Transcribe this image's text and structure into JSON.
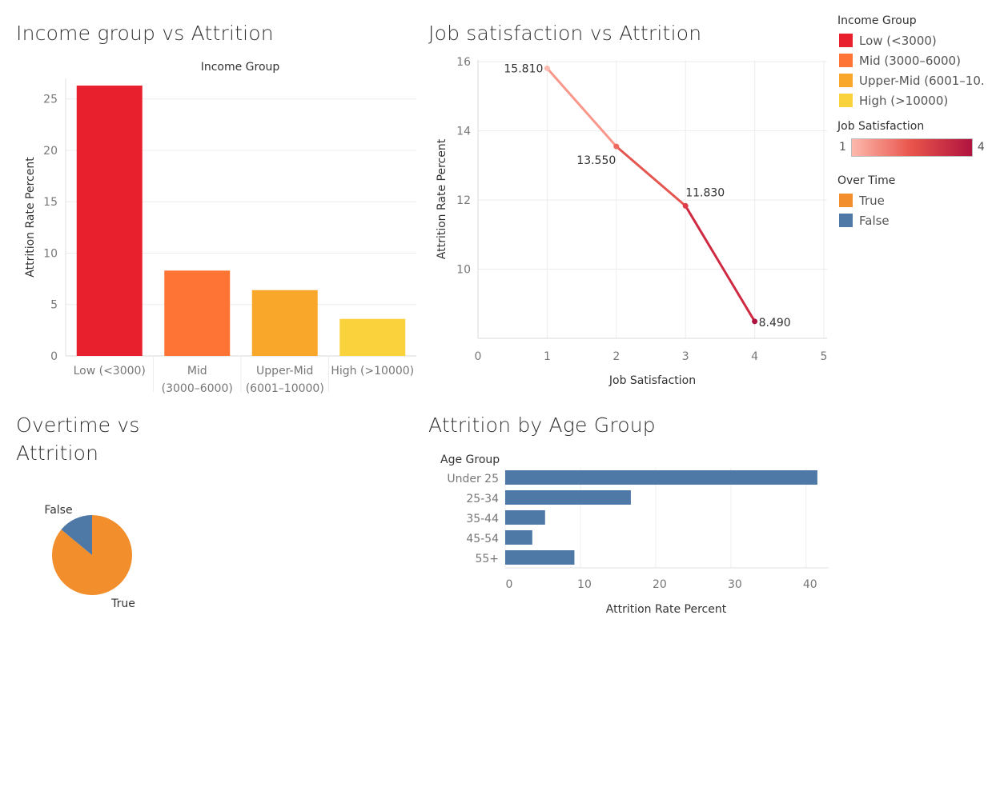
{
  "titles": {
    "income": "Income group vs Attrition",
    "job": "Job satisfaction vs Attrition",
    "overtime_line1": "Overtime vs",
    "overtime_line2": "Attrition",
    "age": "Attrition by Age Group"
  },
  "legend": {
    "income_title": "Income Group",
    "income_items": [
      {
        "label": "Low (<3000)",
        "color": "#e8202e"
      },
      {
        "label": "Mid (3000–6000)",
        "color": "#fd7434"
      },
      {
        "label": "Upper-Mid (6001–10..",
        "color": "#f8a72b"
      },
      {
        "label": "High (>10000)",
        "color": "#fad33c"
      }
    ],
    "job_title": "Job Satisfaction",
    "job_min": "1",
    "job_max": "4",
    "job_colors": [
      "#fcb9ad",
      "#e8534a",
      "#b0133f"
    ],
    "overtime_title": "Over Time",
    "overtime_items": [
      {
        "label": "True",
        "color": "#f28e2b"
      },
      {
        "label": "False",
        "color": "#4e79a7"
      }
    ]
  },
  "chart_data": [
    {
      "type": "bar",
      "title": "Income group vs Attrition",
      "header": "Income Group",
      "ylabel": "Attrition Rate Percent",
      "categories": [
        [
          "Low (<3000)"
        ],
        [
          "Mid",
          "(3000–6000)"
        ],
        [
          "Upper-Mid",
          "(6001–10000)"
        ],
        [
          "High (>10000)"
        ]
      ],
      "values": [
        26.3,
        8.3,
        6.4,
        3.6
      ],
      "colors": [
        "#e8202e",
        "#fd7434",
        "#f8a72b",
        "#fad33c"
      ],
      "ylim": [
        0,
        27
      ],
      "yticks": [
        0,
        5,
        10,
        15,
        20,
        25
      ],
      "grid": true
    },
    {
      "type": "line",
      "title": "Job satisfaction vs Attrition",
      "xlabel": "Job Satisfaction",
      "ylabel": "Attrition Rate Percent",
      "x": [
        1,
        2,
        3,
        4
      ],
      "y": [
        15.81,
        13.55,
        11.83,
        8.49
      ],
      "labels": [
        "15.810",
        "13.550",
        "11.830",
        "8.490"
      ],
      "xlim": [
        0,
        5
      ],
      "ylim": [
        8.0,
        16.05
      ],
      "xticks": [
        0,
        1,
        2,
        3,
        4,
        5
      ],
      "yticks": [
        10,
        12,
        14,
        16
      ],
      "grid": true
    },
    {
      "type": "pie",
      "title": "Overtime vs Attrition",
      "slices": [
        {
          "label": "True",
          "value": 86,
          "color": "#f28e2b"
        },
        {
          "label": "False",
          "value": 14,
          "color": "#4e79a7"
        }
      ]
    },
    {
      "type": "bar",
      "orientation": "horizontal",
      "title": "Attrition by Age Group",
      "header": "Age Group",
      "xlabel": "Attrition Rate Percent",
      "categories": [
        "Under 25",
        "25-34",
        "35-44",
        "45-54",
        "55+"
      ],
      "values": [
        41.5,
        16.7,
        5.3,
        3.6,
        9.2
      ],
      "color": "#4e79a7",
      "xlim": [
        0,
        43
      ],
      "xticks": [
        0,
        10,
        20,
        30,
        40
      ],
      "grid": true
    }
  ]
}
